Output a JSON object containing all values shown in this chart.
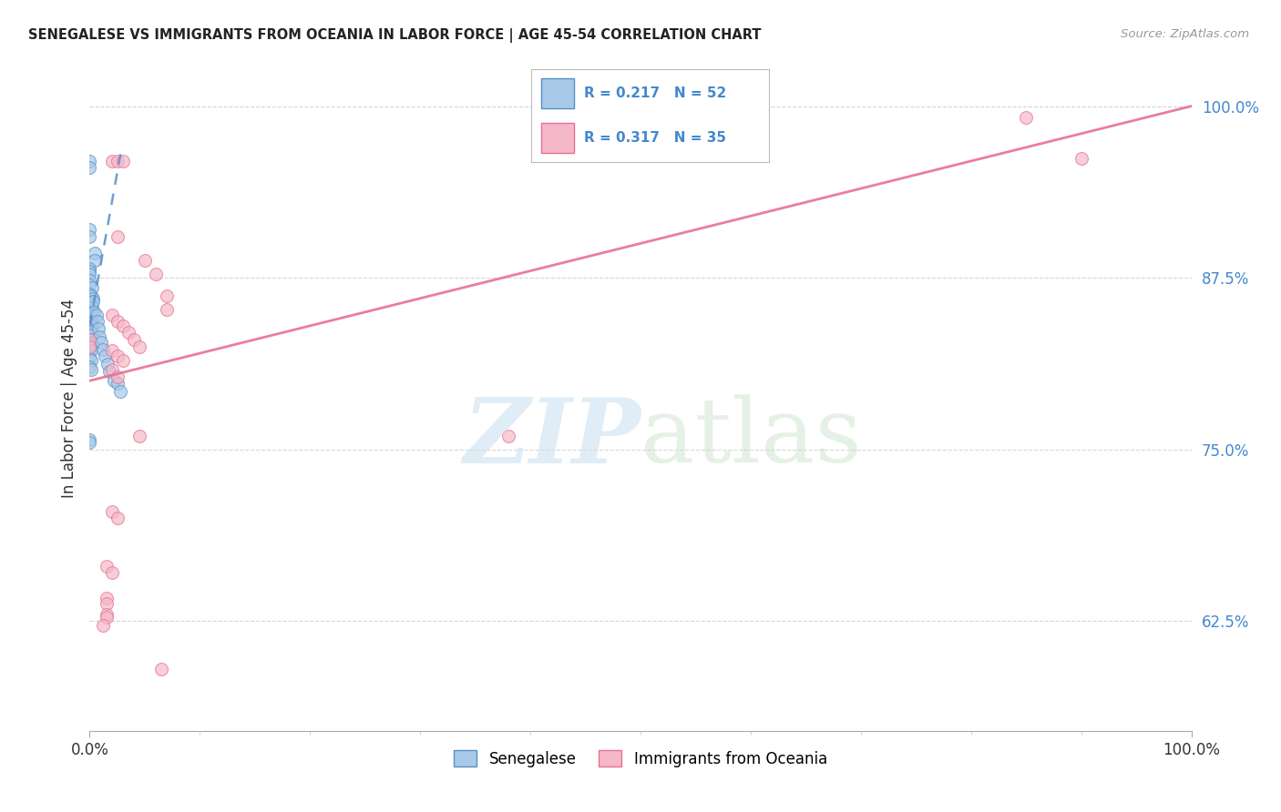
{
  "title": "SENEGALESE VS IMMIGRANTS FROM OCEANIA IN LABOR FORCE | AGE 45-54 CORRELATION CHART",
  "source": "Source: ZipAtlas.com",
  "ylabel": "In Labor Force | Age 45-54",
  "xmin": 0.0,
  "xmax": 1.0,
  "ymin": 0.545,
  "ymax": 1.03,
  "ytick_values": [
    0.625,
    0.75,
    0.875,
    1.0
  ],
  "xtick_values": [
    0.0,
    1.0
  ],
  "xtick_labels": [
    "0.0%",
    "100.0%"
  ],
  "blue_R": 0.217,
  "blue_N": 52,
  "pink_R": 0.317,
  "pink_N": 35,
  "blue_color": "#a8c8e8",
  "pink_color": "#f4b8c8",
  "blue_edge_color": "#5590c8",
  "pink_edge_color": "#e87090",
  "blue_line_color": "#5590c8",
  "pink_line_color": "#e87090",
  "blue_scatter": [
    [
      0.0,
      0.96
    ],
    [
      0.0,
      0.955
    ],
    [
      0.0,
      0.91
    ],
    [
      0.0,
      0.905
    ],
    [
      0.005,
      0.893
    ],
    [
      0.005,
      0.888
    ],
    [
      0.0,
      0.882
    ],
    [
      0.0,
      0.88
    ],
    [
      0.0,
      0.878
    ],
    [
      0.0,
      0.873
    ],
    [
      0.0,
      0.87
    ],
    [
      0.002,
      0.868
    ],
    [
      0.0,
      0.863
    ],
    [
      0.001,
      0.862
    ],
    [
      0.003,
      0.86
    ],
    [
      0.0,
      0.857
    ],
    [
      0.001,
      0.855
    ],
    [
      0.002,
      0.853
    ],
    [
      0.0,
      0.85
    ],
    [
      0.001,
      0.848
    ],
    [
      0.002,
      0.847
    ],
    [
      0.0,
      0.843
    ],
    [
      0.001,
      0.842
    ],
    [
      0.002,
      0.84
    ],
    [
      0.0,
      0.837
    ],
    [
      0.001,
      0.835
    ],
    [
      0.002,
      0.833
    ],
    [
      0.0,
      0.83
    ],
    [
      0.001,
      0.828
    ],
    [
      0.002,
      0.827
    ],
    [
      0.0,
      0.823
    ],
    [
      0.001,
      0.822
    ],
    [
      0.0,
      0.817
    ],
    [
      0.001,
      0.815
    ],
    [
      0.0,
      0.81
    ],
    [
      0.001,
      0.808
    ],
    [
      0.003,
      0.858
    ],
    [
      0.004,
      0.85
    ],
    [
      0.006,
      0.848
    ],
    [
      0.007,
      0.843
    ],
    [
      0.008,
      0.838
    ],
    [
      0.009,
      0.832
    ],
    [
      0.01,
      0.828
    ],
    [
      0.012,
      0.823
    ],
    [
      0.014,
      0.818
    ],
    [
      0.016,
      0.812
    ],
    [
      0.018,
      0.807
    ],
    [
      0.022,
      0.8
    ],
    [
      0.025,
      0.798
    ],
    [
      0.028,
      0.792
    ],
    [
      0.0,
      0.757
    ],
    [
      0.0,
      0.755
    ]
  ],
  "pink_scatter": [
    [
      0.02,
      0.96
    ],
    [
      0.025,
      0.96
    ],
    [
      0.03,
      0.96
    ],
    [
      0.025,
      0.905
    ],
    [
      0.05,
      0.888
    ],
    [
      0.06,
      0.878
    ],
    [
      0.07,
      0.862
    ],
    [
      0.07,
      0.852
    ],
    [
      0.02,
      0.848
    ],
    [
      0.025,
      0.843
    ],
    [
      0.03,
      0.84
    ],
    [
      0.035,
      0.835
    ],
    [
      0.04,
      0.83
    ],
    [
      0.045,
      0.825
    ],
    [
      0.02,
      0.822
    ],
    [
      0.025,
      0.818
    ],
    [
      0.03,
      0.815
    ],
    [
      0.02,
      0.808
    ],
    [
      0.025,
      0.803
    ],
    [
      0.045,
      0.76
    ],
    [
      0.02,
      0.705
    ],
    [
      0.025,
      0.7
    ],
    [
      0.015,
      0.665
    ],
    [
      0.02,
      0.66
    ],
    [
      0.015,
      0.642
    ],
    [
      0.015,
      0.638
    ],
    [
      0.015,
      0.63
    ],
    [
      0.015,
      0.628
    ],
    [
      0.012,
      0.622
    ],
    [
      0.065,
      0.59
    ],
    [
      0.85,
      0.992
    ],
    [
      0.9,
      0.962
    ],
    [
      0.38,
      0.76
    ],
    [
      0.0,
      0.83
    ],
    [
      0.0,
      0.825
    ]
  ],
  "blue_trendline": [
    0.0,
    0.84,
    0.028,
    0.965
  ],
  "pink_trendline": [
    0.0,
    0.8,
    1.0,
    1.0
  ],
  "legend_label_blue": "Senegalese",
  "legend_label_pink": "Immigrants from Oceania"
}
